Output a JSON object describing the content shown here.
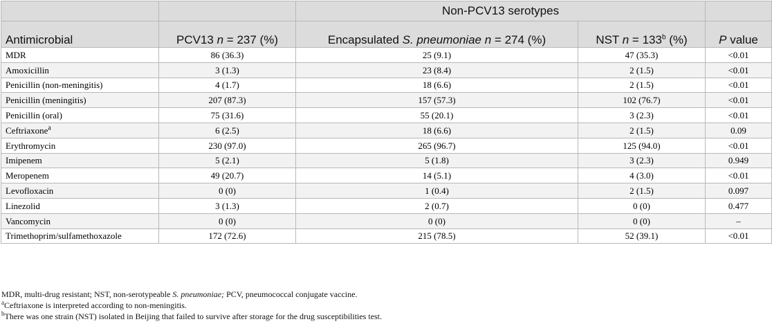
{
  "header": {
    "group_label": "Non-PCV13 serotypes",
    "columns": {
      "antimicrobial": "Antimicrobial",
      "pcv13_prefix": "PCV13 ",
      "pcv13_n": "n",
      "pcv13_suffix": " = 237 (%)",
      "enc_prefix": "Encapsulated ",
      "enc_species": "S. pneumoniae",
      "enc_n": "n",
      "enc_suffix": " = 274 (%)",
      "nst_prefix": "NST ",
      "nst_n": "n",
      "nst_mid": " = 133",
      "nst_sup": "b",
      "nst_suffix": " (%)",
      "p_italic": "P",
      "p_suffix": " value"
    }
  },
  "rows": [
    {
      "antimicrobial": "MDR",
      "sup": "",
      "pcv13": "86 (36.3)",
      "encapsulated": "25 (9.1)",
      "nst": "47 (35.3)",
      "p": "<0.01"
    },
    {
      "antimicrobial": "Amoxicillin",
      "sup": "",
      "pcv13": "3 (1.3)",
      "encapsulated": "23 (8.4)",
      "nst": "2 (1.5)",
      "p": "<0.01"
    },
    {
      "antimicrobial": "Penicillin (non-meningitis)",
      "sup": "",
      "pcv13": "4 (1.7)",
      "encapsulated": "18 (6.6)",
      "nst": "2 (1.5)",
      "p": "<0.01"
    },
    {
      "antimicrobial": "Penicillin (meningitis)",
      "sup": "",
      "pcv13": "207 (87.3)",
      "encapsulated": "157 (57.3)",
      "nst": "102 (76.7)",
      "p": "<0.01"
    },
    {
      "antimicrobial": "Penicillin (oral)",
      "sup": "",
      "pcv13": "75 (31.6)",
      "encapsulated": "55 (20.1)",
      "nst": "3 (2.3)",
      "p": "<0.01"
    },
    {
      "antimicrobial": "Ceftriaxone",
      "sup": "a",
      "pcv13": "6 (2.5)",
      "encapsulated": "18 (6.6)",
      "nst": "2 (1.5)",
      "p": "0.09"
    },
    {
      "antimicrobial": "Erythromycin",
      "sup": "",
      "pcv13": "230 (97.0)",
      "encapsulated": "265 (96.7)",
      "nst": "125 (94.0)",
      "p": "<0.01"
    },
    {
      "antimicrobial": "Imipenem",
      "sup": "",
      "pcv13": "5 (2.1)",
      "encapsulated": "5 (1.8)",
      "nst": "3 (2.3)",
      "p": "0.949"
    },
    {
      "antimicrobial": "Meropenem",
      "sup": "",
      "pcv13": "49 (20.7)",
      "encapsulated": "14 (5.1)",
      "nst": "4 (3.0)",
      "p": "<0.01"
    },
    {
      "antimicrobial": "Levofloxacin",
      "sup": "",
      "pcv13": "0 (0)",
      "encapsulated": "1 (0.4)",
      "nst": "2 (1.5)",
      "p": "0.097"
    },
    {
      "antimicrobial": "Linezolid",
      "sup": "",
      "pcv13": "3 (1.3)",
      "encapsulated": "2 (0.7)",
      "nst": "0 (0)",
      "p": "0.477"
    },
    {
      "antimicrobial": "Vancomycin",
      "sup": "",
      "pcv13": "0 (0)",
      "encapsulated": "0 (0)",
      "nst": "0 (0)",
      "p": "–"
    },
    {
      "antimicrobial": "Trimethoprim/sulfamethoxazole",
      "sup": "",
      "pcv13": "172 (72.6)",
      "encapsulated": "215 (78.5)",
      "nst": "52 (39.1)",
      "p": "<0.01"
    }
  ],
  "footnotes": {
    "abbrev_a": "MDR, multi-drug resistant; NST, non-serotypeable ",
    "abbrev_species": "S. pneumoniae;",
    "abbrev_b": " PCV, pneumococcal conjugate vaccine.",
    "a_mark": "a",
    "a_text": "Ceftriaxone is interpreted according to non-meningitis.",
    "b_mark": "b",
    "b_text": "There was one strain (NST) isolated in Beijing that failed to survive after storage for the drug susceptibilities test."
  }
}
